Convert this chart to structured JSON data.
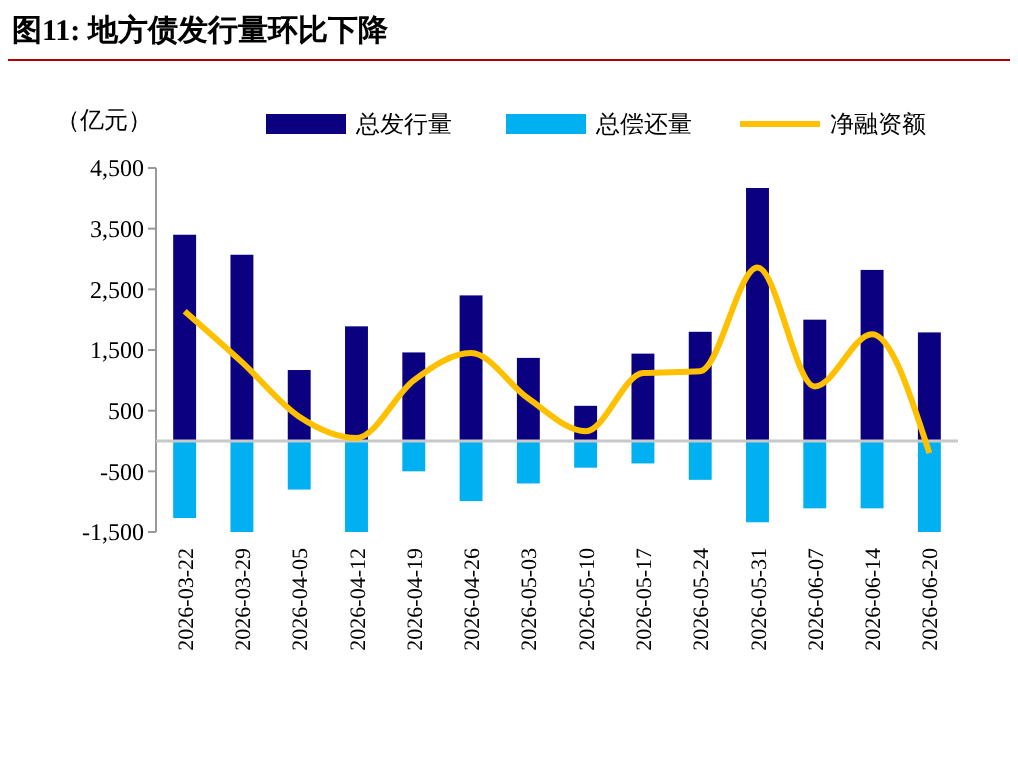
{
  "chart_data": {
    "type": "bar",
    "title": "图11:  地方债发行量环比下降",
    "ylabel": "（亿元）",
    "categories": [
      "2026-03-22",
      "2026-03-29",
      "2026-04-05",
      "2026-04-12",
      "2026-04-19",
      "2026-04-26",
      "2026-05-03",
      "2026-05-10",
      "2026-05-17",
      "2026-05-24",
      "2026-05-31",
      "2026-06-07",
      "2026-06-14",
      "2026-06-20"
    ],
    "series": [
      {
        "name": "总发行量",
        "color": "#0a0080",
        "values": [
          3400,
          3070,
          1170,
          1890,
          1460,
          2400,
          1370,
          580,
          1440,
          1800,
          4170,
          2000,
          2820,
          1790
        ]
      },
      {
        "name": "总偿还量",
        "color": "#00b0f0",
        "values": [
          -1270,
          -1500,
          -800,
          -1500,
          -500,
          -990,
          -700,
          -440,
          -370,
          -640,
          -1340,
          -1110,
          -1110,
          -1500
        ]
      },
      {
        "name": "净融资额",
        "type": "line",
        "color": "#ffc000",
        "values": [
          2140,
          1300,
          400,
          50,
          1000,
          1450,
          700,
          160,
          1120,
          1150,
          2860,
          900,
          1760,
          -200
        ]
      }
    ],
    "ylim": [
      -1500,
      4500
    ],
    "yticks": [
      {
        "value": -1500,
        "label": "-1,500"
      },
      -500,
      500,
      {
        "value": 1500,
        "label": "1,500"
      },
      {
        "value": 2500,
        "label": "2,500"
      },
      {
        "value": 3500,
        "label": "3,500"
      },
      {
        "value": 4500,
        "label": "4,500"
      }
    ],
    "stacked": true,
    "legend": "top",
    "grid": false
  }
}
